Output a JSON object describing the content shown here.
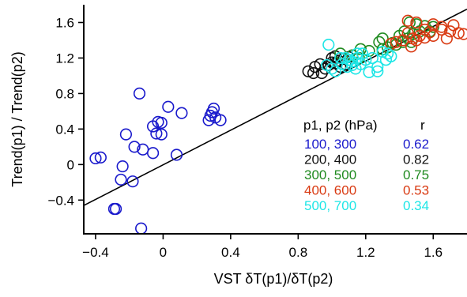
{
  "chart_data": {
    "type": "scatter",
    "title": "",
    "xlabel": "VST δT(p1)/δT(p2)",
    "ylabel": "Trend(p1) / Trend(p2)",
    "xlim": [
      -0.47,
      1.8
    ],
    "ylim": [
      -0.78,
      1.8
    ],
    "xticks": [
      -0.4,
      0,
      0.4,
      0.8,
      1.2,
      1.6
    ],
    "xtick_labels": [
      "−0.4",
      "0",
      "0.4",
      "0.8",
      "1.2",
      "1.6"
    ],
    "yticks": [
      -0.4,
      0,
      0.4,
      0.8,
      1.2,
      1.6
    ],
    "ytick_labels": [
      "−0.4",
      "0",
      "0.4",
      "0.8",
      "1.2",
      "1.6"
    ],
    "grid": false,
    "legend": {
      "placement": "center-right",
      "header_left": "p1, p2 (hPa)",
      "header_right": "r",
      "entries": [
        {
          "label": "100, 300",
          "r": "0.62",
          "color": "#1a1acc"
        },
        {
          "label": "200, 400",
          "r": "0.82",
          "color": "#111111"
        },
        {
          "label": "300, 500",
          "r": "0.75",
          "color": "#1f8a1f"
        },
        {
          "label": "400, 600",
          "r": "0.53",
          "color": "#d93a12"
        },
        {
          "label": "500, 700",
          "r": "0.34",
          "color": "#1ee6e6"
        }
      ]
    },
    "fit_line": {
      "x": [
        -0.5,
        1.8
      ],
      "y": [
        -0.49,
        1.75
      ],
      "color": "#000000"
    },
    "series": [
      {
        "color": "#1a1acc",
        "points": [
          [
            -0.14,
            0.8
          ],
          [
            0.03,
            0.65
          ],
          [
            0.11,
            0.58
          ],
          [
            -0.06,
            0.43
          ],
          [
            -0.03,
            0.48
          ],
          [
            -0.01,
            0.47
          ],
          [
            -0.04,
            0.35
          ],
          [
            -0.01,
            0.34
          ],
          [
            -0.22,
            0.34
          ],
          [
            -0.17,
            0.2
          ],
          [
            -0.12,
            0.17
          ],
          [
            -0.06,
            0.13
          ],
          [
            0.08,
            0.11
          ],
          [
            -0.4,
            0.07
          ],
          [
            -0.37,
            0.08
          ],
          [
            -0.24,
            -0.02
          ],
          [
            -0.25,
            -0.17
          ],
          [
            -0.18,
            -0.19
          ],
          [
            -0.29,
            -0.5
          ],
          [
            -0.28,
            -0.5
          ],
          [
            -0.13,
            -0.72
          ],
          [
            0.29,
            0.59
          ],
          [
            0.3,
            0.63
          ],
          [
            0.28,
            0.55
          ],
          [
            0.31,
            0.53
          ],
          [
            0.27,
            0.5
          ],
          [
            0.34,
            0.5
          ]
        ]
      },
      {
        "color": "#111111",
        "points": [
          [
            0.86,
            1.05
          ],
          [
            0.89,
            1.03
          ],
          [
            0.9,
            1.1
          ],
          [
            0.93,
            1.13
          ],
          [
            0.96,
            1.08
          ],
          [
            0.98,
            1.12
          ],
          [
            1.0,
            1.15
          ],
          [
            1.02,
            1.14
          ],
          [
            1.04,
            1.17
          ],
          [
            1.0,
            1.2
          ],
          [
            1.05,
            1.1
          ],
          [
            1.07,
            1.19
          ],
          [
            1.02,
            1.22
          ],
          [
            0.94,
            1.03
          ],
          [
            1.08,
            1.13
          ],
          [
            1.1,
            1.21
          ]
        ]
      },
      {
        "color": "#1f8a1f",
        "points": [
          [
            1.05,
            1.25
          ],
          [
            1.12,
            1.23
          ],
          [
            1.16,
            1.2
          ],
          [
            1.17,
            1.3
          ],
          [
            1.22,
            1.28
          ],
          [
            1.28,
            1.38
          ],
          [
            1.3,
            1.42
          ],
          [
            1.33,
            1.32
          ],
          [
            1.36,
            1.37
          ],
          [
            1.4,
            1.45
          ],
          [
            1.43,
            1.5
          ],
          [
            1.45,
            1.42
          ],
          [
            1.48,
            1.47
          ],
          [
            1.5,
            1.58
          ],
          [
            1.52,
            1.5
          ],
          [
            1.55,
            1.56
          ],
          [
            1.58,
            1.5
          ],
          [
            1.6,
            1.55
          ],
          [
            1.38,
            1.35
          ],
          [
            1.42,
            1.38
          ],
          [
            1.3,
            1.3
          ],
          [
            1.46,
            1.6
          ],
          [
            1.47,
            1.38
          ]
        ]
      },
      {
        "color": "#d93a12",
        "points": [
          [
            1.45,
            1.62
          ],
          [
            1.5,
            1.6
          ],
          [
            1.55,
            1.52
          ],
          [
            1.6,
            1.58
          ],
          [
            1.65,
            1.55
          ],
          [
            1.7,
            1.5
          ],
          [
            1.75,
            1.48
          ],
          [
            1.78,
            1.47
          ],
          [
            1.68,
            1.42
          ],
          [
            1.52,
            1.45
          ],
          [
            1.48,
            1.42
          ],
          [
            1.45,
            1.48
          ],
          [
            1.42,
            1.4
          ],
          [
            1.38,
            1.38
          ],
          [
            1.35,
            1.36
          ],
          [
            1.6,
            1.45
          ],
          [
            1.65,
            1.52
          ],
          [
            1.72,
            1.57
          ],
          [
            1.55,
            1.43
          ],
          [
            1.5,
            1.4
          ],
          [
            1.47,
            1.33
          ],
          [
            1.58,
            1.49
          ]
        ]
      },
      {
        "color": "#1ee6e6",
        "points": [
          [
            0.97,
            1.12
          ],
          [
            1.02,
            1.05
          ],
          [
            1.06,
            1.13
          ],
          [
            1.09,
            1.1
          ],
          [
            1.12,
            1.16
          ],
          [
            1.14,
            1.08
          ],
          [
            1.15,
            1.2
          ],
          [
            1.17,
            1.13
          ],
          [
            1.2,
            1.18
          ],
          [
            1.24,
            1.2
          ],
          [
            1.27,
            1.1
          ],
          [
            1.3,
            1.27
          ],
          [
            1.33,
            1.25
          ],
          [
            1.35,
            1.22
          ],
          [
            1.22,
            1.04
          ],
          [
            1.27,
            1.05
          ],
          [
            1.05,
            1.2
          ],
          [
            1.1,
            1.18
          ],
          [
            1.0,
            1.08
          ],
          [
            1.12,
            1.12
          ],
          [
            0.98,
            1.35
          ],
          [
            1.15,
            1.25
          ],
          [
            1.32,
            1.18
          ],
          [
            1.08,
            1.2
          ],
          [
            1.18,
            1.25
          ]
        ]
      }
    ]
  }
}
